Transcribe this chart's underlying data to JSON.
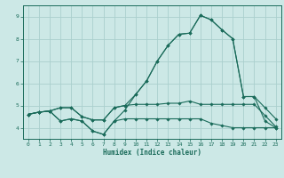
{
  "xlabel": "Humidex (Indice chaleur)",
  "xlim": [
    -0.5,
    23.5
  ],
  "ylim": [
    3.5,
    9.5
  ],
  "yticks": [
    4,
    5,
    6,
    7,
    8,
    9
  ],
  "xticks": [
    0,
    1,
    2,
    3,
    4,
    5,
    6,
    7,
    8,
    9,
    10,
    11,
    12,
    13,
    14,
    15,
    16,
    17,
    18,
    19,
    20,
    21,
    22,
    23
  ],
  "bg_color": "#cce8e6",
  "grid_color": "#aacfcd",
  "line_color": "#1a6b5a",
  "lines": [
    {
      "x": [
        0,
        1,
        2,
        3,
        4,
        5,
        6,
        7,
        8,
        9,
        10,
        11,
        12,
        13,
        14,
        15,
        16,
        17,
        18,
        19,
        20,
        21,
        22,
        23
      ],
      "y": [
        4.6,
        4.7,
        4.75,
        4.9,
        4.9,
        4.5,
        4.35,
        4.35,
        4.9,
        5.0,
        5.05,
        5.05,
        5.05,
        5.1,
        5.1,
        5.2,
        5.05,
        5.05,
        5.05,
        5.05,
        5.05,
        5.05,
        4.55,
        4.05
      ]
    },
    {
      "x": [
        0,
        1,
        2,
        3,
        4,
        5,
        6,
        7,
        8,
        9,
        10,
        11,
        12,
        13,
        14,
        15,
        16,
        17,
        18,
        19,
        20,
        21,
        22,
        23
      ],
      "y": [
        4.6,
        4.7,
        4.75,
        4.3,
        4.4,
        4.3,
        3.85,
        3.7,
        4.3,
        4.4,
        4.4,
        4.4,
        4.4,
        4.4,
        4.4,
        4.4,
        4.4,
        4.2,
        4.1,
        4.0,
        4.0,
        4.0,
        4.0,
        4.0
      ]
    },
    {
      "x": [
        0,
        1,
        2,
        3,
        4,
        5,
        6,
        7,
        8,
        9,
        10,
        11,
        12,
        13,
        14,
        15,
        16,
        17,
        18,
        19,
        20,
        21,
        22,
        23
      ],
      "y": [
        4.6,
        4.7,
        4.75,
        4.9,
        4.9,
        4.5,
        4.35,
        4.35,
        4.9,
        5.0,
        5.5,
        6.1,
        7.0,
        7.7,
        8.2,
        8.25,
        9.05,
        8.85,
        8.4,
        8.0,
        5.4,
        5.4,
        4.9,
        4.4
      ]
    },
    {
      "x": [
        0,
        1,
        2,
        3,
        4,
        5,
        6,
        7,
        8,
        9,
        10,
        11,
        12,
        13,
        14,
        15,
        16,
        17,
        18,
        19,
        20,
        21,
        22,
        23
      ],
      "y": [
        4.6,
        4.7,
        4.75,
        4.3,
        4.4,
        4.3,
        3.85,
        3.7,
        4.3,
        4.8,
        5.5,
        6.1,
        7.0,
        7.7,
        8.2,
        8.25,
        9.05,
        8.85,
        8.4,
        8.0,
        5.4,
        5.4,
        4.3,
        4.0
      ]
    }
  ]
}
